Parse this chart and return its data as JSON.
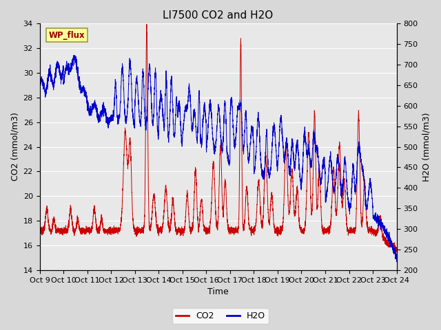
{
  "title": "LI7500 CO2 and H2O",
  "xlabel": "Time",
  "ylabel_left": "CO2 (mmol/m3)",
  "ylabel_right": "H2O (mmol/m3)",
  "ylim_left": [
    14,
    34
  ],
  "ylim_right": [
    200,
    800
  ],
  "yticks_left": [
    14,
    16,
    18,
    20,
    22,
    24,
    26,
    28,
    30,
    32,
    34
  ],
  "yticks_right": [
    200,
    250,
    300,
    350,
    400,
    450,
    500,
    550,
    600,
    650,
    700,
    750,
    800
  ],
  "xtick_labels": [
    "Oct 9",
    "Oct 10",
    "Oct 11",
    "Oct 12",
    "Oct 13",
    "Oct 14",
    "Oct 15",
    "Oct 16",
    "Oct 17",
    "Oct 18",
    "Oct 19",
    "Oct 20",
    "Oct 21",
    "Oct 22",
    "Oct 23",
    "Oct 24"
  ],
  "legend_labels": [
    "CO2",
    "H2O"
  ],
  "co2_color": "#cc0000",
  "h2o_color": "#0000cc",
  "annotation_text": "WP_flux",
  "annotation_bg": "#ffff99",
  "annotation_border": "#999966",
  "plot_bg": "#e8e8e8",
  "grid_color": "#ffffff",
  "title_fontsize": 11,
  "axis_fontsize": 9,
  "tick_fontsize": 8
}
